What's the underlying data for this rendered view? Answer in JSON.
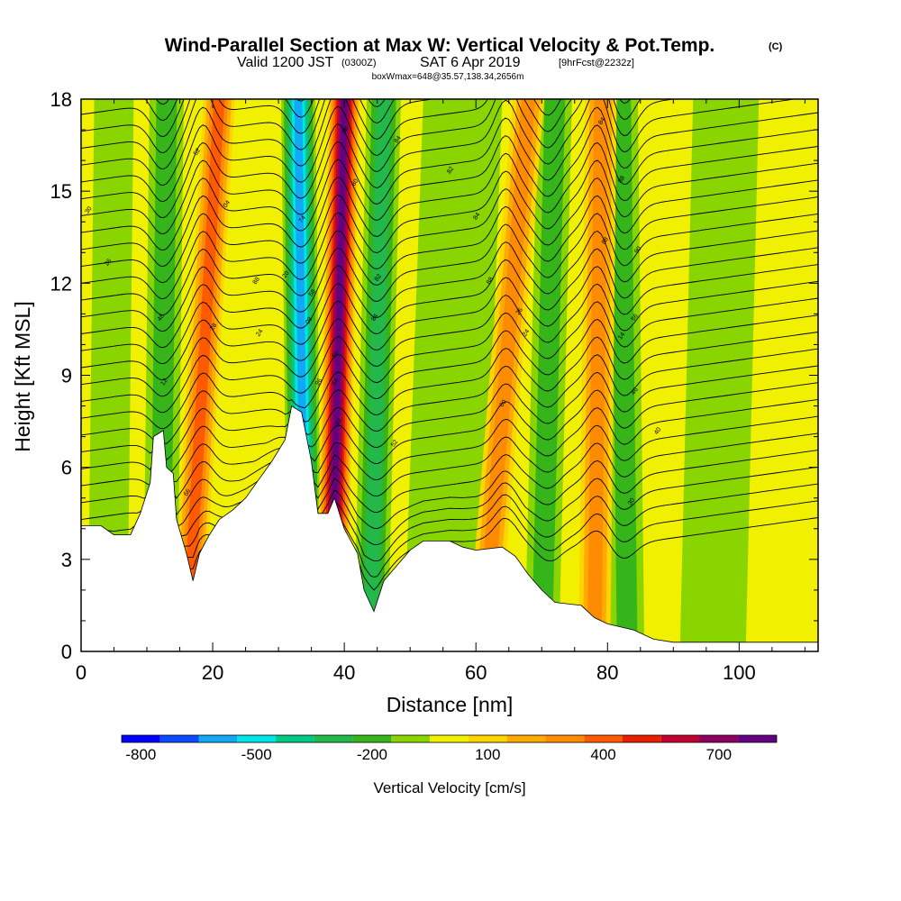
{
  "chart_data": {
    "type": "heatmap",
    "title": "Wind-Parallel Section at Max W: Vertical Velocity & Pot.Temp.",
    "title_badge": "(C)",
    "subtitle": {
      "valid": "Valid 1200 JST",
      "zulu": "(0300Z)",
      "date": "SAT 6 Apr 2019",
      "forecast": "[9hrFcst@2232z]"
    },
    "box_info": "boxWmax=648@35.57,138.34,2656m",
    "xlabel": "Distance [nm]",
    "ylabel": "Height [Kft MSL]",
    "xlim": [
      0,
      112
    ],
    "ylim": [
      0,
      18
    ],
    "x_ticks": [
      0,
      20,
      40,
      60,
      80,
      100
    ],
    "y_ticks": [
      0,
      3,
      6,
      9,
      12,
      15,
      18
    ],
    "colorbar": {
      "title": "Vertical Velocity [cm/s]",
      "levels": [
        -850,
        -750,
        -650,
        -550,
        -450,
        -350,
        -250,
        -150,
        -50,
        50,
        150,
        250,
        350,
        450,
        550,
        650,
        750,
        850
      ],
      "tick_labels": [
        "-800",
        "-500",
        "-200",
        "100",
        "400",
        "700"
      ],
      "tick_positions": [
        -800,
        -500,
        -200,
        100,
        400,
        700
      ],
      "colors": [
        "#0000ff",
        "#0a4bff",
        "#12a8f5",
        "#00e5e5",
        "#00c985",
        "#22b84a",
        "#35b51a",
        "#8ad400",
        "#f0f000",
        "#ffd500",
        "#ffaa00",
        "#ff8c00",
        "#ff5a00",
        "#e82000",
        "#c00030",
        "#8e0060",
        "#640080"
      ]
    },
    "updraft_columns": [
      {
        "x_base": 16,
        "x_top": 21,
        "w_max": 350
      },
      {
        "x_base": 38,
        "x_top": 40,
        "w_max": 800
      },
      {
        "x_base": 61,
        "x_top": 68,
        "w_max": 300
      },
      {
        "x_base": 78,
        "x_top": 79,
        "w_max": 250
      }
    ],
    "downdraft_columns": [
      {
        "x_base": 12,
        "x_top": 13,
        "w_min": -150
      },
      {
        "x_base": 34,
        "x_top": 33,
        "w_min": -550
      },
      {
        "x_base": 44,
        "x_top": 46,
        "w_min": -250
      },
      {
        "x_base": 70,
        "x_top": 72,
        "w_min": -200
      },
      {
        "x_base": 83,
        "x_top": 82,
        "w_min": -150
      }
    ],
    "terrain": [
      {
        "x": 0,
        "h": 4.1
      },
      {
        "x": 3,
        "h": 4.1
      },
      {
        "x": 5,
        "h": 3.8
      },
      {
        "x": 7.5,
        "h": 3.8
      },
      {
        "x": 9,
        "h": 4.5
      },
      {
        "x": 10.5,
        "h": 5.5
      },
      {
        "x": 11,
        "h": 7.0
      },
      {
        "x": 12.5,
        "h": 7.2
      },
      {
        "x": 13,
        "h": 6.0
      },
      {
        "x": 14,
        "h": 5.8
      },
      {
        "x": 14.5,
        "h": 4.3
      },
      {
        "x": 16,
        "h": 3.2
      },
      {
        "x": 17,
        "h": 2.3
      },
      {
        "x": 18,
        "h": 3.2
      },
      {
        "x": 19.5,
        "h": 3.8
      },
      {
        "x": 21,
        "h": 4.3
      },
      {
        "x": 23,
        "h": 4.6
      },
      {
        "x": 25,
        "h": 5.0
      },
      {
        "x": 27,
        "h": 5.6
      },
      {
        "x": 29,
        "h": 6.2
      },
      {
        "x": 31,
        "h": 6.9
      },
      {
        "x": 32,
        "h": 8.0
      },
      {
        "x": 33.5,
        "h": 7.8
      },
      {
        "x": 35,
        "h": 6.2
      },
      {
        "x": 36,
        "h": 4.5
      },
      {
        "x": 37.5,
        "h": 4.5
      },
      {
        "x": 38.5,
        "h": 5.0
      },
      {
        "x": 40,
        "h": 4.0
      },
      {
        "x": 42,
        "h": 3.2
      },
      {
        "x": 43,
        "h": 2.0
      },
      {
        "x": 44.5,
        "h": 1.3
      },
      {
        "x": 46,
        "h": 2.3
      },
      {
        "x": 48,
        "h": 2.8
      },
      {
        "x": 50,
        "h": 3.3
      },
      {
        "x": 52,
        "h": 3.6
      },
      {
        "x": 56,
        "h": 3.6
      },
      {
        "x": 58,
        "h": 3.4
      },
      {
        "x": 60,
        "h": 3.3
      },
      {
        "x": 64,
        "h": 3.4
      },
      {
        "x": 66,
        "h": 3.1
      },
      {
        "x": 68,
        "h": 2.5
      },
      {
        "x": 70,
        "h": 2.0
      },
      {
        "x": 72,
        "h": 1.6
      },
      {
        "x": 76,
        "h": 1.5
      },
      {
        "x": 78,
        "h": 1.1
      },
      {
        "x": 80,
        "h": 0.9
      },
      {
        "x": 84,
        "h": 0.7
      },
      {
        "x": 87,
        "h": 0.4
      },
      {
        "x": 90,
        "h": 0.3
      },
      {
        "x": 100,
        "h": 0.3
      },
      {
        "x": 112,
        "h": 0.3
      }
    ],
    "contour_labels": [
      {
        "x": 1,
        "y": 14.4,
        "text": "30"
      },
      {
        "x": 4,
        "y": 12.7,
        "text": "26"
      },
      {
        "x": 17.5,
        "y": 16.3,
        "text": "52"
      },
      {
        "x": 22,
        "y": 14.6,
        "text": "04"
      },
      {
        "x": 12,
        "y": 10.9,
        "text": "48"
      },
      {
        "x": 20,
        "y": 10.6,
        "text": "28"
      },
      {
        "x": 27,
        "y": 10.4,
        "text": "24"
      },
      {
        "x": 12.5,
        "y": 8.8,
        "text": "12"
      },
      {
        "x": 31,
        "y": 12.3,
        "text": "20"
      },
      {
        "x": 26.5,
        "y": 12.1,
        "text": "88"
      },
      {
        "x": 33.5,
        "y": 14.1,
        "text": "74"
      },
      {
        "x": 35,
        "y": 11.7,
        "text": "58"
      },
      {
        "x": 34.5,
        "y": 10.8,
        "text": "08"
      },
      {
        "x": 36,
        "y": 8.8,
        "text": "96"
      },
      {
        "x": 40,
        "y": 17.0,
        "text": "48"
      },
      {
        "x": 41.5,
        "y": 15.3,
        "text": "80"
      },
      {
        "x": 38.5,
        "y": 9.7,
        "text": "56"
      },
      {
        "x": 38.5,
        "y": 8.8,
        "text": "64"
      },
      {
        "x": 39,
        "y": 7.5,
        "text": "92"
      },
      {
        "x": 45,
        "y": 12.2,
        "text": "82"
      },
      {
        "x": 44.5,
        "y": 10.9,
        "text": "84"
      },
      {
        "x": 48,
        "y": 16.7,
        "text": "84"
      },
      {
        "x": 56,
        "y": 15.7,
        "text": "82"
      },
      {
        "x": 60,
        "y": 14.2,
        "text": "84"
      },
      {
        "x": 62,
        "y": 12.1,
        "text": "88"
      },
      {
        "x": 66.5,
        "y": 11.1,
        "text": "26"
      },
      {
        "x": 67.5,
        "y": 10.4,
        "text": "24"
      },
      {
        "x": 64,
        "y": 8.1,
        "text": "60"
      },
      {
        "x": 47.5,
        "y": 6.8,
        "text": "52"
      },
      {
        "x": 16,
        "y": 5.2,
        "text": "66"
      },
      {
        "x": 79,
        "y": 17.3,
        "text": "84"
      },
      {
        "x": 82,
        "y": 15.4,
        "text": "88"
      },
      {
        "x": 79.5,
        "y": 13.4,
        "text": "88"
      },
      {
        "x": 84.5,
        "y": 13.1,
        "text": "90"
      },
      {
        "x": 84,
        "y": 10.9,
        "text": "56"
      },
      {
        "x": 82,
        "y": 10.3,
        "text": "14"
      },
      {
        "x": 84,
        "y": 8.5,
        "text": "46"
      },
      {
        "x": 87.5,
        "y": 7.2,
        "text": "40"
      },
      {
        "x": 83.5,
        "y": 4.9,
        "text": "30"
      }
    ]
  }
}
